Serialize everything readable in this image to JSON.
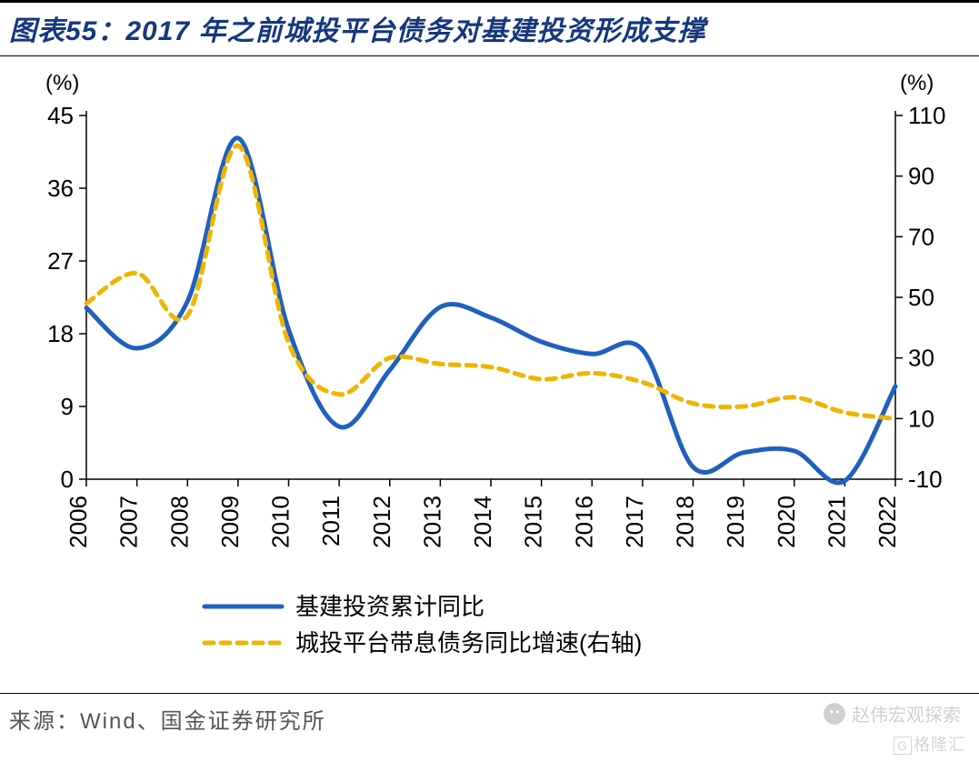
{
  "title": "图表55：2017 年之前城投平台债务对基建投资形成支撑",
  "source": "来源：Wind、国金证券研究所",
  "watermark_text": "赵伟宏观探索",
  "watermark2_text": "格隆汇",
  "chart": {
    "type": "line-dual-axis",
    "background_color": "#ffffff",
    "plot_border_color": "#000000",
    "grid": false,
    "y_left": {
      "unit": "(%)",
      "min": 0,
      "max": 45,
      "ticks": [
        0,
        9,
        18,
        27,
        36,
        45
      ],
      "tick_fontsize": 26,
      "label_fontsize": 24
    },
    "y_right": {
      "unit": "(%)",
      "min": -10,
      "max": 110,
      "ticks": [
        -10,
        10,
        30,
        50,
        70,
        90,
        110
      ],
      "tick_fontsize": 26,
      "label_fontsize": 24
    },
    "x_categories": [
      "2006",
      "2007",
      "2008",
      "2009",
      "2010",
      "2011",
      "2012",
      "2013",
      "2014",
      "2015",
      "2016",
      "2017",
      "2018",
      "2019",
      "2020",
      "2021",
      "2022"
    ],
    "x_tick_fontsize": 26,
    "x_tick_rotation": -90,
    "series": [
      {
        "name": "基建投资累计同比",
        "axis": "left",
        "color": "#1f5fbf",
        "line_width": 5,
        "dash": "none",
        "data": [
          21.2,
          16.2,
          22.0,
          42.2,
          18.5,
          6.5,
          13.5,
          21.3,
          20.0,
          17.0,
          15.5,
          16.0,
          1.5,
          3.3,
          3.5,
          -0.2,
          11.5
        ]
      },
      {
        "name": "城投平台带息债务同比增速(右轴)",
        "axis": "right",
        "color": "#f0b400",
        "line_width": 5,
        "dash": "10,8",
        "data": [
          48,
          58,
          44,
          100,
          35,
          18,
          30,
          28,
          27,
          23,
          25,
          22,
          15,
          14,
          17,
          12,
          10
        ]
      }
    ],
    "legend": {
      "position": "bottom-center",
      "fontsize": 26
    }
  }
}
